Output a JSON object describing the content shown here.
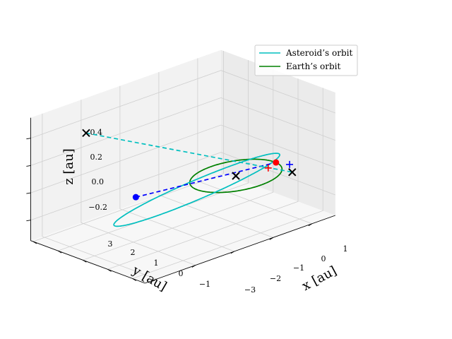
{
  "chart_data": {
    "type": "line-3d",
    "title": "",
    "xlabel": "x [au]",
    "ylabel": "y [au]",
    "zlabel": "z [au]",
    "xlim": [
      -3.3,
      1.6
    ],
    "ylim": [
      -1.5,
      3.1
    ],
    "zlim": [
      -0.35,
      0.55
    ],
    "x_ticks": [
      "−3",
      "−2",
      "−1",
      "0",
      "1"
    ],
    "y_ticks": [
      "3",
      "2",
      "1",
      "0",
      "−1"
    ],
    "z_ticks": [
      "−0.2",
      "0.0",
      "0.2",
      "0.4"
    ],
    "grid": true,
    "legend_position": "top-right",
    "legend": [
      {
        "label": "Asteroid’s orbit",
        "color": "#00bfbf"
      },
      {
        "label": "Earth’s orbit",
        "color": "#008000"
      }
    ],
    "asteroid_orbit": {
      "semi_major_axis": 1.9,
      "eccentricity": 0.53,
      "inclination_deg": 19.0,
      "perihelion_direction": [
        1.0,
        0.0,
        0.0
      ],
      "color": "#00bfbf"
    },
    "earth_orbit": {
      "radius": 1.0,
      "color": "#008000"
    },
    "points": [
      {
        "name": "sun",
        "x": 0.0,
        "y": 0.0,
        "z": 0.0,
        "marker": "x",
        "color": "#000000"
      },
      {
        "name": "earth",
        "x": 1.0,
        "y": -0.05,
        "z": 0.0,
        "marker": "o",
        "color": "#ff0000"
      },
      {
        "name": "asteroid",
        "x": -1.2,
        "y": 2.15,
        "z": -0.18,
        "marker": "o",
        "color": "#0000ff"
      },
      {
        "name": "asteroid-opposite",
        "x": -2.0,
        "y": 2.9,
        "z": 0.32,
        "marker": "x",
        "color": "#000000"
      },
      {
        "name": "earth-opposite",
        "x": 1.45,
        "y": 0.0,
        "z": -0.12,
        "marker": "x",
        "color": "#000000"
      },
      {
        "name": "plus-earth",
        "x": 0.8,
        "y": -0.05,
        "z": -0.02,
        "marker": "+",
        "color": "#ff0000"
      },
      {
        "name": "plus-blue",
        "x": 1.35,
        "y": -0.05,
        "z": -0.05,
        "marker": "+",
        "color": "#0000ff"
      }
    ],
    "lines": [
      {
        "name": "asteroid-to-earth-line",
        "from": [
          -1.2,
          2.15,
          -0.18
        ],
        "to": [
          1.0,
          -0.05,
          0.0
        ],
        "color": "#0000ff",
        "style": "dashed"
      },
      {
        "name": "opposition-line",
        "from": [
          -2.0,
          2.9,
          0.32
        ],
        "to": [
          1.45,
          0.0,
          -0.12
        ],
        "color": "#00bfbf",
        "style": "dashed"
      }
    ]
  }
}
